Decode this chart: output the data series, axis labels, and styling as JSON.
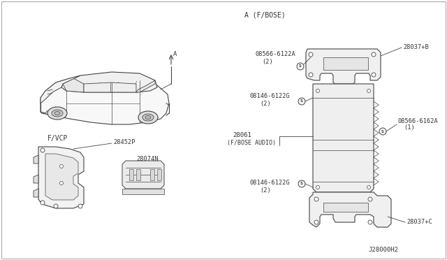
{
  "bg_color": "#ffffff",
  "border_color": "#aaaaaa",
  "line_color": "#444444",
  "text_color": "#333333",
  "labels": {
    "section_A": "A (F/BOSE)",
    "section_FVCP": "F/VCP",
    "part_A_label": "A",
    "part_28037B": "28037+B",
    "part_08566_6122A": "08566-6122A",
    "part_08566_6122A_qty": "(2)",
    "part_08146_6122G_top": "08146-6122G",
    "part_08146_6122G_top_qty": "(2)",
    "part_08566_6162A": "08566-6162A",
    "part_08566_6162A_qty": "(1)",
    "part_28061": "28061",
    "part_28061_sub": "(F/BOSE AUDIO)",
    "part_08146_6122G_bot": "08146-6122G",
    "part_08146_6122G_bot_qty": "(2)",
    "part_28037C": "28037+C",
    "part_28452P": "28452P",
    "part_28074N": "28074N",
    "diagram_code": "J28000H2"
  },
  "figsize": [
    6.4,
    3.72
  ],
  "dpi": 100
}
